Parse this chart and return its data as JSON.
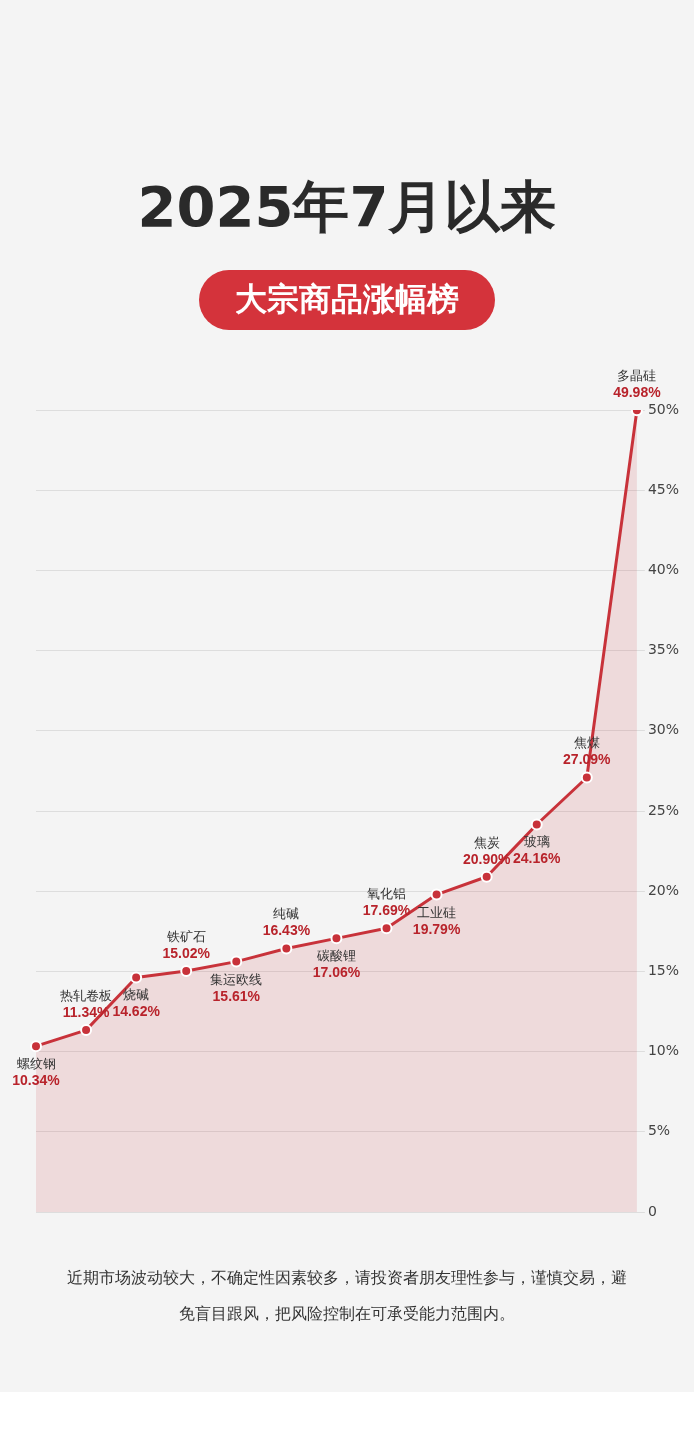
{
  "chart_data": {
    "type": "area",
    "title": "2025年7月以来",
    "subtitle": "大宗商品涨幅榜",
    "categories": [
      "螺纹钢",
      "热轧卷板",
      "烧碱",
      "铁矿石",
      "集运欧线",
      "纯碱",
      "碳酸锂",
      "氧化铝",
      "工业硅",
      "焦炭",
      "玻璃",
      "焦煤",
      "多晶硅"
    ],
    "series": [
      {
        "color": "#c8323a",
        "values": [
          10.34,
          11.34,
          14.62,
          15.02,
          15.61,
          16.43,
          17.06,
          17.69,
          19.79,
          20.9,
          24.16,
          27.09,
          49.98
        ],
        "value_labels": [
          "10.34%",
          "11.34%",
          "14.62%",
          "15.02%",
          "15.61%",
          "16.43%",
          "17.06%",
          "17.69%",
          "19.79%",
          "20.90%",
          "24.16%",
          "27.09%",
          "49.98%"
        ]
      }
    ],
    "ylim": [
      0,
      50
    ],
    "yticks": [
      0,
      {
        "value": 5,
        "label": "5%"
      },
      {
        "value": 10,
        "label": "10%"
      },
      {
        "value": 15,
        "label": "15%"
      },
      {
        "value": 20,
        "label": "20%"
      },
      {
        "value": 25,
        "label": "25%"
      },
      {
        "value": 30,
        "label": "30%"
      },
      {
        "value": 35,
        "label": "35%"
      },
      {
        "value": 40,
        "label": "40%"
      },
      {
        "value": 45,
        "label": "45%"
      },
      {
        "value": 50,
        "label": "50%"
      }
    ],
    "grid": "y",
    "tick_labels": "y",
    "marker": "circle",
    "line_style": "solid",
    "legend": false,
    "annotations": [
      "近期市场波动较大，不确定性因素较多，请投资者朋友理性参与，谨慎交易，避免盲目跟风，把风险控制在可承受能力范围内。"
    ]
  }
}
